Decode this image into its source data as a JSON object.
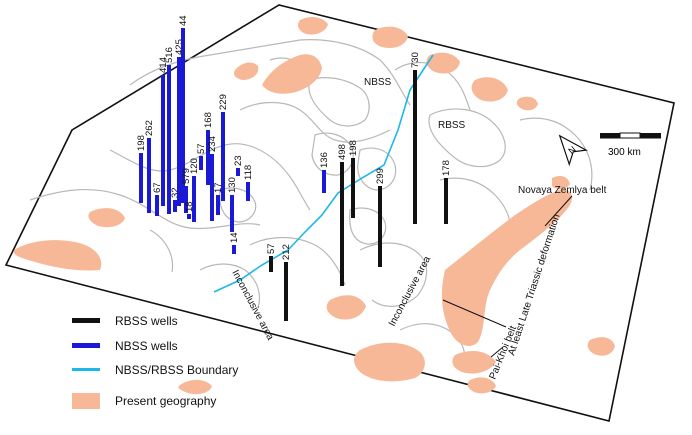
{
  "colors": {
    "rbss": "#111111",
    "nbss": "#1a1ad6",
    "boundary": "#1cb8e8",
    "geography": "#f7b897",
    "outline": "#b8b8b8",
    "frame": "#111111"
  },
  "wells": {
    "nbss": [
      {
        "label": "198"
      },
      {
        "label": "262"
      },
      {
        "label": "67"
      },
      {
        "label": "414"
      },
      {
        "label": "516"
      },
      {
        "label": "32"
      },
      {
        "label": "425"
      },
      {
        "label": "44"
      },
      {
        "label": "579"
      },
      {
        "label": "18"
      },
      {
        "label": "120"
      },
      {
        "label": "57"
      },
      {
        "label": "168"
      },
      {
        "label": "234"
      },
      {
        "label": "17"
      },
      {
        "label": "229"
      },
      {
        "label": "130"
      },
      {
        "label": "14"
      },
      {
        "label": "23"
      },
      {
        "label": "118"
      },
      {
        "label": "136"
      }
    ],
    "rbss": [
      {
        "label": "57"
      },
      {
        "label": "212"
      },
      {
        "label": "498"
      },
      {
        "label": "198"
      },
      {
        "label": "299"
      },
      {
        "label": "730"
      },
      {
        "label": "178"
      }
    ]
  },
  "labels": {
    "nbss": "NBSS",
    "rbss": "RBSS",
    "inconclusive_1": "Inconclusive area",
    "inconclusive_2": "Inconclusive area",
    "novaya_zemlya": "Novaya Zemlya belt",
    "late_triassic": "At least Late Triassic deformation",
    "pai_khoi": "Pai-Khoi belt"
  },
  "north_label": "N",
  "scale_label": "300 km",
  "legend": [
    {
      "label": "RBSS wells",
      "kind": "rbss"
    },
    {
      "label": "NBSS wells",
      "kind": "nbss"
    },
    {
      "label": "NBSS/RBSS Boundary",
      "kind": "boundary"
    },
    {
      "label": "Present geography",
      "kind": "geography"
    }
  ]
}
